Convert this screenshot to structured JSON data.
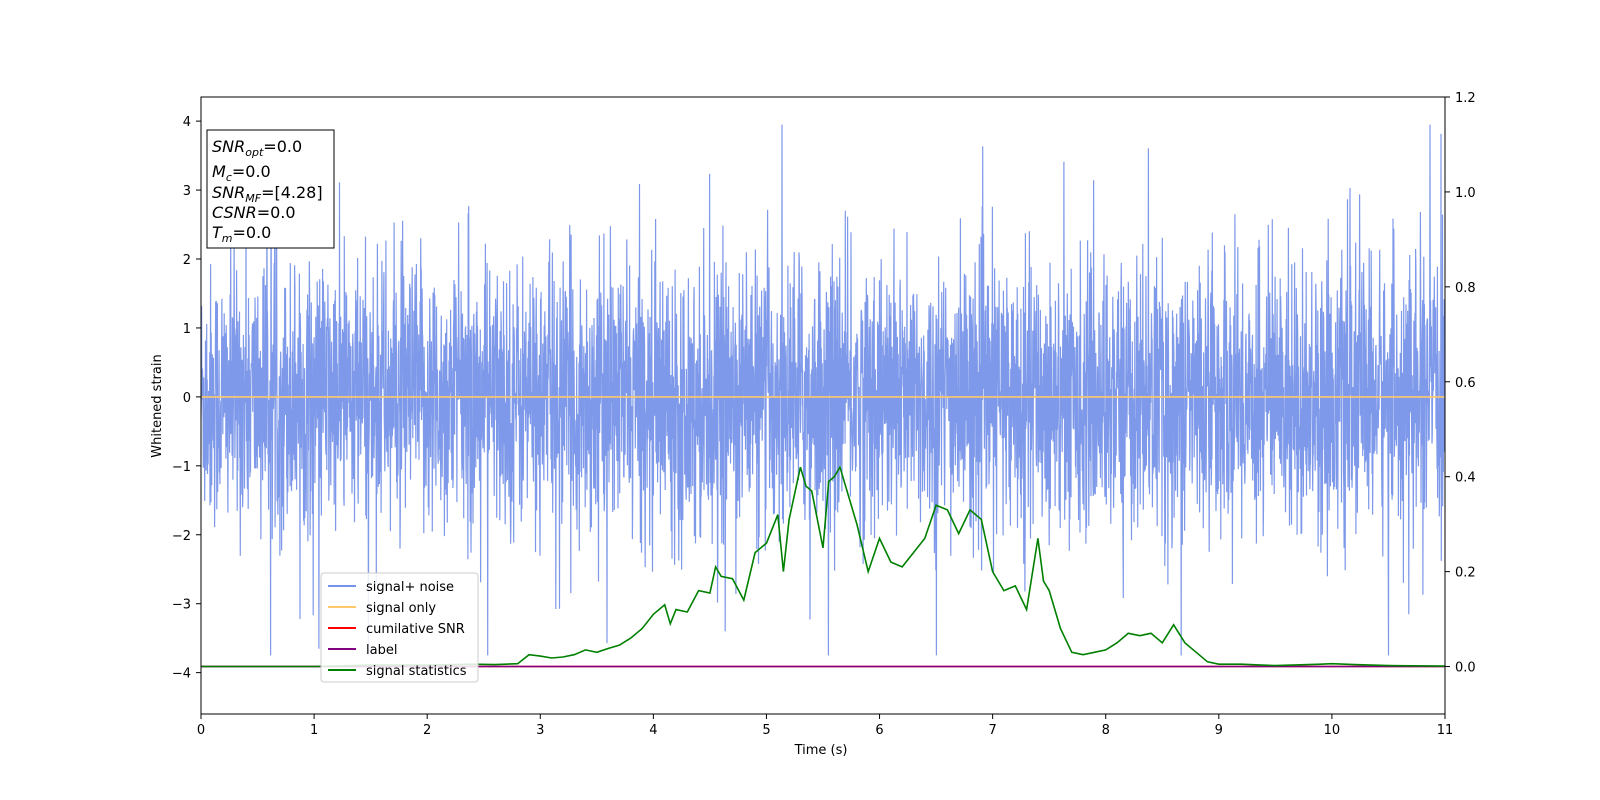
{
  "chart_data": {
    "type": "line",
    "xlabel": "Time (s)",
    "ylabel": "Whitened strain",
    "xlim": [
      0,
      11
    ],
    "ylim": [
      -4.6,
      4.35
    ],
    "y2lim": [
      -0.1,
      1.2
    ],
    "x_ticks": [
      "0",
      "1",
      "2",
      "3",
      "4",
      "5",
      "6",
      "7",
      "8",
      "9",
      "10",
      "11"
    ],
    "y_ticks": [
      "−4",
      "−3",
      "−2",
      "−1",
      "0",
      "1",
      "2",
      "3",
      "4"
    ],
    "y2_ticks": [
      "0.0",
      "0.2",
      "0.4",
      "0.6",
      "0.8",
      "1.0",
      "1.2"
    ],
    "grid": false,
    "legend_position": "lower-left",
    "annotation": {
      "snr_opt": {
        "symbol": "SNR",
        "sub": "opt",
        "value": "=0.0"
      },
      "mc": {
        "symbol": "M",
        "sub": "c",
        "value": "=0.0"
      },
      "snr_mf": {
        "symbol": "SNR",
        "sub": "MF",
        "value": "=[4.28]"
      },
      "csnr": {
        "symbol": "CSNR",
        "sub": "",
        "value": "=0.0"
      },
      "tm": {
        "symbol": "T",
        "sub": "m",
        "value": "=0.0"
      }
    },
    "series": [
      {
        "name": "signal+ noise",
        "color": "#7793e8",
        "axis": "left",
        "kind": "noise",
        "description_values": {
          "typical_abs_max": 2.3,
          "peak_max": 3.95,
          "peak_min": -3.75
        }
      },
      {
        "name": "signal only",
        "color": "#ffc96b",
        "axis": "left",
        "x": [
          0,
          11
        ],
        "y": [
          0,
          0
        ]
      },
      {
        "name": "cumilative SNR",
        "color": "#ff0000",
        "axis": "right",
        "x": [
          0,
          11
        ],
        "y": [
          0,
          0
        ]
      },
      {
        "name": "label",
        "color": "#800080",
        "axis": "right",
        "x": [
          0,
          11
        ],
        "y": [
          0,
          0
        ]
      },
      {
        "name": "signal statistics",
        "color": "#008000",
        "axis": "right",
        "x": [
          0,
          0.5,
          1.0,
          1.5,
          2.0,
          2.4,
          2.6,
          2.8,
          2.9,
          3.0,
          3.1,
          3.2,
          3.3,
          3.4,
          3.5,
          3.6,
          3.7,
          3.8,
          3.9,
          4.0,
          4.1,
          4.15,
          4.2,
          4.3,
          4.4,
          4.5,
          4.55,
          4.6,
          4.7,
          4.8,
          4.9,
          5.0,
          5.1,
          5.15,
          5.2,
          5.3,
          5.35,
          5.4,
          5.5,
          5.55,
          5.6,
          5.65,
          5.7,
          5.8,
          5.9,
          6.0,
          6.1,
          6.2,
          6.3,
          6.4,
          6.5,
          6.6,
          6.7,
          6.8,
          6.9,
          7.0,
          7.1,
          7.2,
          7.3,
          7.4,
          7.45,
          7.5,
          7.6,
          7.7,
          7.8,
          7.9,
          8.0,
          8.1,
          8.2,
          8.3,
          8.4,
          8.5,
          8.6,
          8.7,
          8.8,
          8.9,
          9.0,
          9.2,
          9.5,
          9.9,
          10.0,
          10.2,
          10.5,
          11.0
        ],
        "y": [
          0.0,
          0.0,
          0.0,
          0.003,
          0.003,
          0.005,
          0.004,
          0.006,
          0.025,
          0.022,
          0.018,
          0.02,
          0.025,
          0.035,
          0.03,
          0.038,
          0.045,
          0.06,
          0.08,
          0.11,
          0.13,
          0.09,
          0.12,
          0.115,
          0.16,
          0.155,
          0.21,
          0.19,
          0.185,
          0.14,
          0.24,
          0.26,
          0.32,
          0.2,
          0.31,
          0.42,
          0.38,
          0.37,
          0.25,
          0.39,
          0.4,
          0.42,
          0.38,
          0.3,
          0.2,
          0.27,
          0.22,
          0.21,
          0.24,
          0.27,
          0.34,
          0.33,
          0.28,
          0.33,
          0.31,
          0.2,
          0.16,
          0.17,
          0.12,
          0.27,
          0.18,
          0.16,
          0.08,
          0.03,
          0.025,
          0.03,
          0.035,
          0.05,
          0.07,
          0.065,
          0.07,
          0.05,
          0.088,
          0.05,
          0.03,
          0.01,
          0.005,
          0.005,
          0.002,
          0.005,
          0.006,
          0.004,
          0.002,
          0.001
        ]
      }
    ]
  }
}
